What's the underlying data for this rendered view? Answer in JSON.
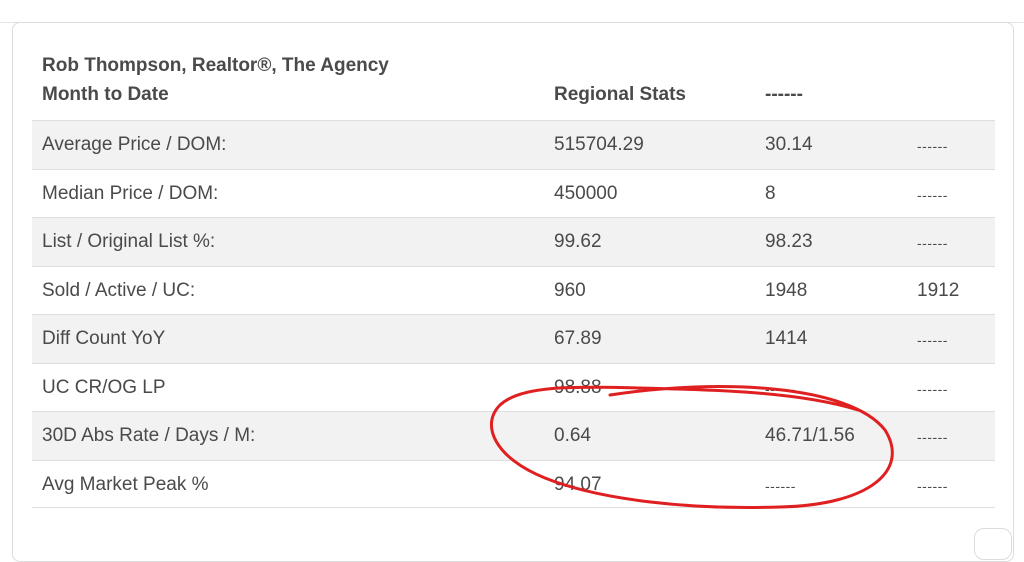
{
  "header": {
    "agent": "Rob Thompson, Realtor®, The Agency",
    "period": "Month to Date",
    "col1": "Regional Stats",
    "col2": "------"
  },
  "rows": [
    {
      "label": "Average Price / DOM:",
      "v1": "515704.29",
      "v2": "30.14",
      "v3": "------"
    },
    {
      "label": "Median Price / DOM:",
      "v1": "450000",
      "v2": "8",
      "v3": "------"
    },
    {
      "label": "List / Original List %:",
      "v1": "99.62",
      "v2": "98.23",
      "v3": "------"
    },
    {
      "label": "Sold / Active / UC:",
      "v1": "960",
      "v2": "1948",
      "v3": "1912"
    },
    {
      "label": "Diff Count YoY",
      "v1": "67.89",
      "v2": "1414",
      "v3": "------"
    },
    {
      "label": "UC CR/OG LP",
      "v1": "98.88",
      "v2": "------",
      "v3": "------"
    },
    {
      "label": "30D Abs Rate / Days / M:",
      "v1": "0.64",
      "v2": "46.71/1.56",
      "v3": "------"
    },
    {
      "label": "Avg Market Peak %",
      "v1": "94.07",
      "v2": "------",
      "v3": "------"
    }
  ],
  "colors": {
    "text": "#4a4a4a",
    "row_shade": "#f2f2f2",
    "annotation_red": "#e02020"
  }
}
